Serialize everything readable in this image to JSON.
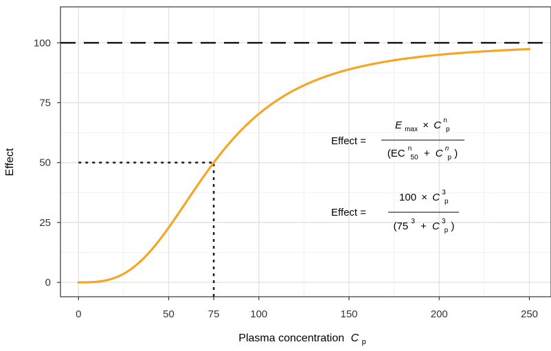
{
  "chart_data": {
    "type": "line",
    "title": "",
    "xlabel": "Plasma concentration",
    "xlabel_symbol": "C",
    "xlabel_subscript": "p",
    "ylabel": "Effect",
    "xlim": [
      -10,
      262
    ],
    "ylim": [
      -6,
      115
    ],
    "x_ticks": [
      0,
      50,
      75,
      100,
      150,
      200,
      250
    ],
    "y_ticks": [
      0,
      25,
      50,
      75,
      100
    ],
    "x_tick_labels": [
      "0",
      "50",
      "75",
      "100",
      "150",
      "200",
      "250"
    ],
    "y_tick_labels": [
      "0",
      "25",
      "50",
      "75",
      "100"
    ],
    "grid": true,
    "model": {
      "emax": 100,
      "ec50": 75,
      "hill_n": 3,
      "x_range": [
        0,
        250
      ]
    },
    "series": [
      {
        "name": "Effect curve",
        "color": "#f5a623",
        "style": "solid",
        "x": [
          0,
          10,
          20,
          30,
          40,
          50,
          60,
          70,
          75,
          80,
          90,
          100,
          125,
          150,
          175,
          200,
          225,
          250
        ],
        "y": [
          0,
          0.2,
          1.9,
          6.0,
          13.2,
          22.9,
          33.9,
          44.8,
          50.0,
          54.8,
          63.3,
          70.3,
          82.2,
          88.9,
          92.7,
          95.0,
          96.4,
          97.4
        ]
      }
    ],
    "reference_lines": [
      {
        "name": "Emax asymptote",
        "type": "horizontal",
        "y": 100,
        "style": "long-dash",
        "color": "#222222"
      },
      {
        "name": "EC50 horizontal guide",
        "type": "horizontal-segment",
        "y": 50,
        "x_from": 0,
        "x_to": 75,
        "style": "dotted",
        "color": "#222222"
      },
      {
        "name": "EC50 vertical guide",
        "type": "vertical-segment",
        "x": 75,
        "y_from": -6,
        "y_to": 50,
        "style": "dotted",
        "color": "#222222"
      }
    ],
    "annotations": {
      "general_equation": {
        "lhs": "Effect =",
        "num_symbol": "E",
        "num_symbol_sub": "max",
        "num_times": "×",
        "num_var": "C",
        "num_var_sub": "p",
        "num_var_sup": "n",
        "den_open": "(EC",
        "den_ec_sub": "50",
        "den_ec_sup": "n",
        "den_plus": "+",
        "den_var": "C",
        "den_var_sub": "p",
        "den_var_sup": "n",
        "den_close": ")"
      },
      "specific_equation": {
        "lhs": "Effect =",
        "num_value": "100",
        "num_times": "×",
        "num_var": "C",
        "num_var_sub": "p",
        "num_var_sup": "3",
        "den_open": "(75",
        "den_const_sup": "3",
        "den_plus": "+",
        "den_var": "C",
        "den_var_sub": "p",
        "den_var_sup": "3",
        "den_close": ")"
      }
    }
  }
}
